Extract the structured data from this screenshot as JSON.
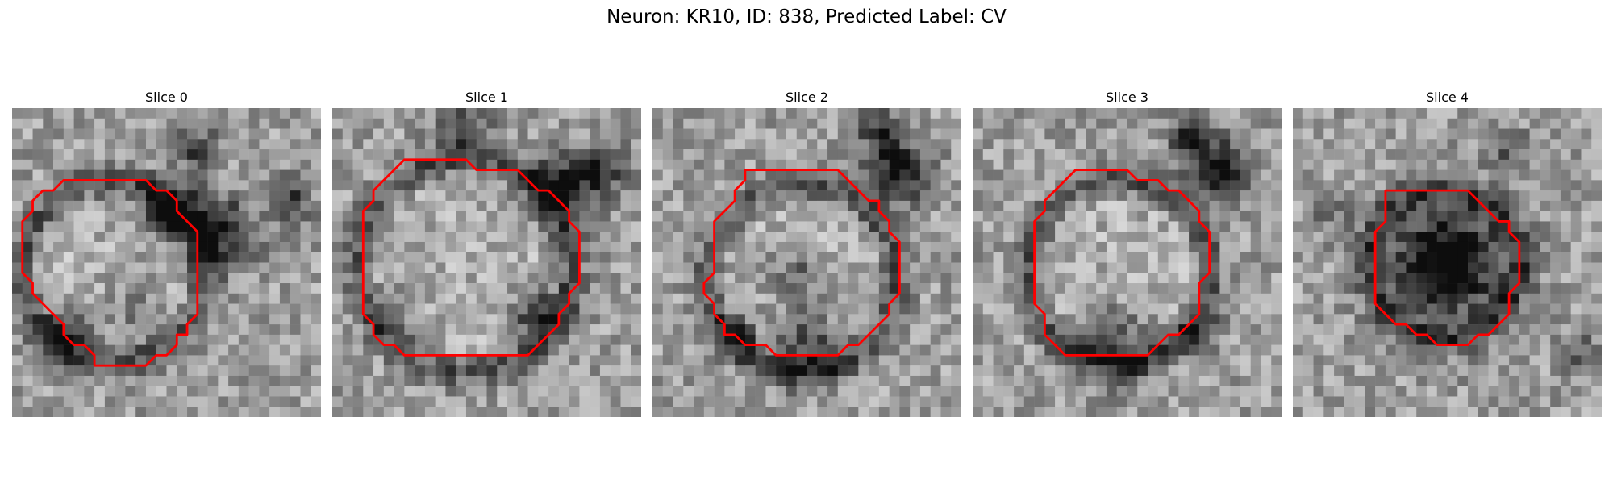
{
  "figure": {
    "title": "Neuron: KR10, ID: 838, Predicted Label: CV"
  },
  "panels": [
    {
      "title": "Slice 0",
      "contour": [
        [
          10,
          7
        ],
        [
          13,
          7
        ],
        [
          14,
          8
        ],
        [
          15,
          8
        ],
        [
          16,
          9
        ],
        [
          16,
          10
        ],
        [
          17,
          11
        ],
        [
          18,
          12
        ],
        [
          18,
          13
        ],
        [
          18,
          14
        ],
        [
          18,
          15
        ],
        [
          18,
          16
        ],
        [
          18,
          17
        ],
        [
          18,
          18
        ],
        [
          18,
          19
        ],
        [
          18,
          20
        ],
        [
          17,
          21
        ],
        [
          17,
          22
        ],
        [
          16,
          22
        ],
        [
          16,
          23
        ],
        [
          15,
          24
        ],
        [
          14,
          24
        ],
        [
          13,
          25
        ],
        [
          12,
          25
        ],
        [
          11,
          25
        ],
        [
          10,
          25
        ],
        [
          9,
          25
        ],
        [
          8,
          25
        ],
        [
          8,
          24
        ],
        [
          7,
          23
        ],
        [
          6,
          23
        ],
        [
          5,
          22
        ],
        [
          5,
          21
        ],
        [
          4,
          20
        ],
        [
          3,
          19
        ],
        [
          2,
          18
        ],
        [
          2,
          17
        ],
        [
          1,
          16
        ],
        [
          1,
          15
        ],
        [
          1,
          14
        ],
        [
          1,
          13
        ],
        [
          1,
          12
        ],
        [
          1,
          11
        ],
        [
          2,
          10
        ],
        [
          2,
          9
        ],
        [
          3,
          8
        ],
        [
          4,
          8
        ],
        [
          5,
          7
        ],
        [
          6,
          7
        ],
        [
          7,
          7
        ],
        [
          8,
          7
        ],
        [
          9,
          7
        ]
      ],
      "seed": 11,
      "dark": [
        [
          20,
          12,
          3.5,
          0.5
        ],
        [
          15,
          10,
          2.5,
          0.6
        ],
        [
          18,
          4,
          2.0,
          0.4
        ],
        [
          5,
          22,
          2.5,
          0.5
        ],
        [
          27,
          9,
          2.0,
          0.4
        ],
        [
          12,
          20,
          3.0,
          0.2
        ]
      ]
    },
    {
      "title": "Slice 1",
      "contour": [
        [
          7,
          5
        ],
        [
          10,
          5
        ],
        [
          11,
          5
        ],
        [
          12,
          5
        ],
        [
          13,
          5
        ],
        [
          14,
          6
        ],
        [
          15,
          6
        ],
        [
          16,
          6
        ],
        [
          17,
          6
        ],
        [
          18,
          6
        ],
        [
          19,
          7
        ],
        [
          20,
          8
        ],
        [
          21,
          8
        ],
        [
          22,
          9
        ],
        [
          23,
          10
        ],
        [
          23,
          11
        ],
        [
          24,
          12
        ],
        [
          24,
          13
        ],
        [
          24,
          14
        ],
        [
          24,
          15
        ],
        [
          24,
          16
        ],
        [
          24,
          17
        ],
        [
          23,
          18
        ],
        [
          23,
          19
        ],
        [
          22,
          20
        ],
        [
          22,
          21
        ],
        [
          21,
          22
        ],
        [
          20,
          23
        ],
        [
          19,
          24
        ],
        [
          18,
          24
        ],
        [
          17,
          24
        ],
        [
          16,
          24
        ],
        [
          15,
          24
        ],
        [
          14,
          24
        ],
        [
          13,
          24
        ],
        [
          12,
          24
        ],
        [
          11,
          24
        ],
        [
          10,
          24
        ],
        [
          9,
          24
        ],
        [
          8,
          24
        ],
        [
          7,
          24
        ],
        [
          6,
          23
        ],
        [
          5,
          23
        ],
        [
          4,
          22
        ],
        [
          4,
          21
        ],
        [
          3,
          20
        ],
        [
          3,
          19
        ],
        [
          3,
          18
        ],
        [
          3,
          17
        ],
        [
          3,
          16
        ],
        [
          3,
          15
        ],
        [
          3,
          14
        ],
        [
          3,
          13
        ],
        [
          3,
          12
        ],
        [
          3,
          11
        ],
        [
          3,
          10
        ],
        [
          4,
          9
        ],
        [
          4,
          8
        ],
        [
          5,
          7
        ],
        [
          6,
          6
        ]
      ],
      "seed": 23,
      "dark": [
        [
          22,
          8,
          3.0,
          0.55
        ],
        [
          20,
          20,
          2.5,
          0.45
        ],
        [
          13,
          2,
          3.0,
          0.3
        ],
        [
          26,
          6,
          2.5,
          0.4
        ],
        [
          6,
          20,
          2.0,
          0.3
        ]
      ]
    },
    {
      "title": "Slice 2",
      "contour": [
        [
          9,
          6
        ],
        [
          18,
          6
        ],
        [
          19,
          7
        ],
        [
          20,
          8
        ],
        [
          21,
          9
        ],
        [
          22,
          9
        ],
        [
          22,
          10
        ],
        [
          23,
          11
        ],
        [
          23,
          12
        ],
        [
          24,
          13
        ],
        [
          24,
          14
        ],
        [
          24,
          15
        ],
        [
          24,
          16
        ],
        [
          24,
          17
        ],
        [
          24,
          18
        ],
        [
          23,
          19
        ],
        [
          23,
          20
        ],
        [
          22,
          21
        ],
        [
          21,
          22
        ],
        [
          20,
          23
        ],
        [
          19,
          23
        ],
        [
          18,
          24
        ],
        [
          17,
          24
        ],
        [
          16,
          24
        ],
        [
          15,
          24
        ],
        [
          14,
          24
        ],
        [
          13,
          24
        ],
        [
          12,
          24
        ],
        [
          11,
          23
        ],
        [
          10,
          23
        ],
        [
          9,
          23
        ],
        [
          8,
          22
        ],
        [
          7,
          22
        ],
        [
          7,
          21
        ],
        [
          6,
          20
        ],
        [
          6,
          19
        ],
        [
          5,
          18
        ],
        [
          5,
          17
        ],
        [
          6,
          16
        ],
        [
          6,
          15
        ],
        [
          6,
          14
        ],
        [
          6,
          13
        ],
        [
          6,
          12
        ],
        [
          6,
          11
        ],
        [
          7,
          10
        ],
        [
          8,
          9
        ],
        [
          8,
          8
        ],
        [
          9,
          7
        ]
      ],
      "seed": 37,
      "dark": [
        [
          24,
          6,
          3.0,
          0.55
        ],
        [
          22,
          2,
          2.0,
          0.4
        ],
        [
          15,
          23,
          3.5,
          0.4
        ],
        [
          8,
          22,
          2.0,
          0.35
        ],
        [
          14,
          16,
          2.5,
          0.25
        ]
      ]
    },
    {
      "title": "Slice 3",
      "contour": [
        [
          10,
          6
        ],
        [
          15,
          6
        ],
        [
          16,
          7
        ],
        [
          17,
          7
        ],
        [
          18,
          7
        ],
        [
          19,
          8
        ],
        [
          20,
          8
        ],
        [
          21,
          9
        ],
        [
          22,
          10
        ],
        [
          22,
          11
        ],
        [
          23,
          12
        ],
        [
          23,
          13
        ],
        [
          23,
          14
        ],
        [
          23,
          15
        ],
        [
          23,
          16
        ],
        [
          22,
          17
        ],
        [
          22,
          18
        ],
        [
          22,
          19
        ],
        [
          22,
          20
        ],
        [
          21,
          21
        ],
        [
          20,
          22
        ],
        [
          19,
          22
        ],
        [
          18,
          23
        ],
        [
          17,
          24
        ],
        [
          16,
          24
        ],
        [
          15,
          24
        ],
        [
          14,
          24
        ],
        [
          13,
          24
        ],
        [
          12,
          24
        ],
        [
          11,
          24
        ],
        [
          10,
          24
        ],
        [
          9,
          24
        ],
        [
          8,
          23
        ],
        [
          7,
          22
        ],
        [
          7,
          21
        ],
        [
          7,
          20
        ],
        [
          6,
          19
        ],
        [
          6,
          18
        ],
        [
          6,
          17
        ],
        [
          6,
          16
        ],
        [
          6,
          15
        ],
        [
          6,
          14
        ],
        [
          6,
          13
        ],
        [
          6,
          12
        ],
        [
          6,
          11
        ],
        [
          7,
          10
        ],
        [
          7,
          9
        ],
        [
          8,
          8
        ],
        [
          9,
          7
        ]
      ],
      "seed": 49,
      "dark": [
        [
          24,
          6,
          3.0,
          0.55
        ],
        [
          21,
          3,
          2.0,
          0.45
        ],
        [
          14,
          23,
          3.5,
          0.35
        ],
        [
          22,
          22,
          2.0,
          0.3
        ]
      ]
    },
    {
      "title": "Slice 4",
      "contour": [
        [
          9,
          8
        ],
        [
          11,
          8
        ],
        [
          12,
          8
        ],
        [
          13,
          8
        ],
        [
          14,
          8
        ],
        [
          15,
          8
        ],
        [
          16,
          8
        ],
        [
          17,
          8
        ],
        [
          18,
          9
        ],
        [
          19,
          10
        ],
        [
          20,
          11
        ],
        [
          21,
          11
        ],
        [
          21,
          12
        ],
        [
          22,
          13
        ],
        [
          22,
          14
        ],
        [
          22,
          15
        ],
        [
          22,
          16
        ],
        [
          22,
          17
        ],
        [
          21,
          18
        ],
        [
          21,
          19
        ],
        [
          21,
          20
        ],
        [
          20,
          21
        ],
        [
          19,
          22
        ],
        [
          18,
          22
        ],
        [
          17,
          23
        ],
        [
          16,
          23
        ],
        [
          15,
          23
        ],
        [
          14,
          23
        ],
        [
          13,
          22
        ],
        [
          12,
          22
        ],
        [
          11,
          21
        ],
        [
          10,
          21
        ],
        [
          9,
          20
        ],
        [
          8,
          19
        ],
        [
          8,
          18
        ],
        [
          8,
          17
        ],
        [
          8,
          16
        ],
        [
          8,
          15
        ],
        [
          8,
          14
        ],
        [
          8,
          13
        ],
        [
          8,
          12
        ],
        [
          9,
          11
        ],
        [
          9,
          10
        ],
        [
          9,
          9
        ]
      ],
      "seed": 61,
      "dark": [
        [
          15,
          15,
          5.5,
          0.75
        ],
        [
          21,
          4,
          2.0,
          0.3
        ],
        [
          28,
          24,
          2.0,
          0.3
        ],
        [
          4,
          10,
          2.0,
          0.2
        ]
      ]
    }
  ],
  "colors": {
    "contour": "#ff0000"
  }
}
